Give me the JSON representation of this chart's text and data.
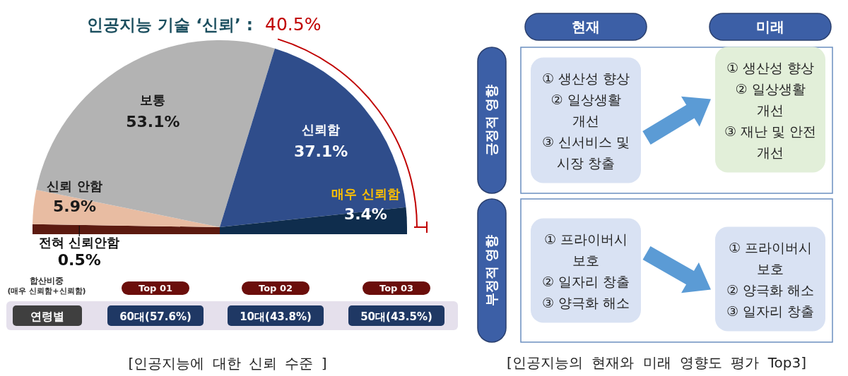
{
  "chart_data": [
    {
      "type": "pie",
      "title": "인공지능 기술 ‘신뢰’ :",
      "categories": [
        "전혀 신뢰안함",
        "신뢰 안함",
        "보통",
        "신뢰함",
        "매우 신뢰함"
      ],
      "values": [
        0.5,
        5.9,
        53.1,
        37.1,
        3.4
      ],
      "colors": [
        "#5c1a10",
        "#e8bca2",
        "#b3b3b3",
        "#2f4d8b",
        "#0f2d4d"
      ],
      "value_labels": [
        "0.5%",
        "5.9%",
        "53.1%",
        "37.1%",
        "3.4%"
      ],
      "annotations": [
        "40.5%",
        "[인공지능에 대한 신뢰 수준 ]"
      ]
    },
    {
      "type": "other",
      "categories": [
        "Top 01",
        "Top 02",
        "Top 03"
      ],
      "y_categories": [
        "연령별"
      ],
      "cell_labels": [
        [
          "60대(57.6%)",
          "10대(43.8%)",
          "50대(43.5%)"
        ]
      ],
      "annotations": [
        "합산비중\n(매우 신뢰함+신뢰함)"
      ]
    },
    {
      "type": "other",
      "categories": [
        "현재",
        "미래"
      ],
      "y_categories": [
        "긍정적 영향",
        "부정적 영향"
      ],
      "cell_labels": [
        [
          "① 생산성 향상\n② 일상생활\n개선\n③ 신서비스 및\n시장 창출",
          "① 생산성 향상\n② 일상생활\n개선\n③ 재난 및 안전\n개선"
        ],
        [
          "① 프라이버시\n보호\n② 일자리 창출\n③ 양극화 해소",
          "① 프라이버시\n보호\n② 양극화 해소\n③ 일자리 창출"
        ]
      ],
      "annotations": [
        "[인공지능의 현재와 미래 영향도 평가 Top3]"
      ]
    }
  ]
}
